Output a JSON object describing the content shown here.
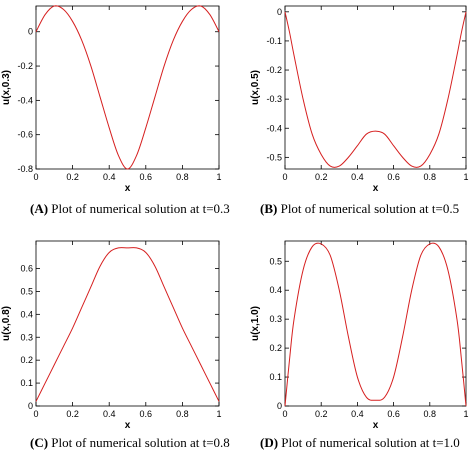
{
  "chart_data": [
    {
      "type": "line",
      "caption_letter": "(A)",
      "caption_text": " Plot of numerical solution at t=0.3",
      "xlabel": "x",
      "ylabel": "u(x,0.3)",
      "xlim": [
        0,
        1
      ],
      "ylim": [
        -0.8,
        0.15
      ],
      "xticks": [
        "0",
        "0.2",
        "0.4",
        "0.6",
        "0.8",
        "1"
      ],
      "xtick_values": [
        0,
        0.2,
        0.4,
        0.6,
        0.8,
        1
      ],
      "yticks": [
        "0",
        "-0.2",
        "-0.4",
        "-0.6",
        "-0.8"
      ],
      "ytick_values": [
        0,
        -0.2,
        -0.4,
        -0.6,
        -0.8
      ],
      "color": "#d62020",
      "x": [
        0,
        0.05,
        0.1,
        0.15,
        0.2,
        0.25,
        0.3,
        0.35,
        0.4,
        0.45,
        0.5,
        0.55,
        0.6,
        0.65,
        0.7,
        0.75,
        0.8,
        0.85,
        0.9,
        0.95,
        1
      ],
      "y": [
        0,
        0.1,
        0.15,
        0.13,
        0.06,
        -0.05,
        -0.2,
        -0.38,
        -0.56,
        -0.72,
        -0.8,
        -0.72,
        -0.56,
        -0.38,
        -0.2,
        -0.05,
        0.06,
        0.13,
        0.15,
        0.1,
        0
      ]
    },
    {
      "type": "line",
      "caption_letter": "(B)",
      "caption_text": " Plot of numerical solution at t=0.5",
      "xlabel": "x",
      "ylabel": "u(x,0.5)",
      "xlim": [
        0,
        1
      ],
      "ylim": [
        -0.54,
        0.02
      ],
      "xticks": [
        "0",
        "0.2",
        "0.4",
        "0.6",
        "0.8",
        "1"
      ],
      "xtick_values": [
        0,
        0.2,
        0.4,
        0.6,
        0.8,
        1
      ],
      "yticks": [
        "0",
        "-0.1",
        "-0.2",
        "-0.3",
        "-0.4",
        "-0.5"
      ],
      "ytick_values": [
        0,
        -0.1,
        -0.2,
        -0.3,
        -0.4,
        -0.5
      ],
      "color": "#d62020",
      "x": [
        0,
        0.025,
        0.05,
        0.1,
        0.15,
        0.2,
        0.25,
        0.3,
        0.35,
        0.4,
        0.45,
        0.5,
        0.55,
        0.6,
        0.65,
        0.7,
        0.75,
        0.8,
        0.85,
        0.9,
        0.95,
        0.975,
        1
      ],
      "y": [
        0,
        -0.07,
        -0.15,
        -0.3,
        -0.42,
        -0.49,
        -0.53,
        -0.53,
        -0.5,
        -0.46,
        -0.42,
        -0.41,
        -0.42,
        -0.46,
        -0.5,
        -0.53,
        -0.53,
        -0.49,
        -0.42,
        -0.3,
        -0.15,
        -0.07,
        0
      ]
    },
    {
      "type": "line",
      "caption_letter": "(C)",
      "caption_text": " Plot of numerical solution at t=0.8",
      "xlabel": "x",
      "ylabel": "u(x,0.8)",
      "xlim": [
        0,
        1
      ],
      "ylim": [
        0,
        0.72
      ],
      "xticks": [
        "0",
        "0.2",
        "0.4",
        "0.6",
        "0.8",
        "1"
      ],
      "xtick_values": [
        0,
        0.2,
        0.4,
        0.6,
        0.8,
        1
      ],
      "yticks": [
        "0",
        "0.1",
        "0.2",
        "0.3",
        "0.4",
        "0.5",
        "0.6"
      ],
      "ytick_values": [
        0,
        0.1,
        0.2,
        0.3,
        0.4,
        0.5,
        0.6
      ],
      "color": "#d62020",
      "x": [
        0,
        0.05,
        0.1,
        0.15,
        0.2,
        0.25,
        0.3,
        0.35,
        0.4,
        0.45,
        0.5,
        0.55,
        0.6,
        0.65,
        0.7,
        0.75,
        0.8,
        0.85,
        0.9,
        0.95,
        1
      ],
      "y": [
        0.02,
        0.1,
        0.18,
        0.26,
        0.34,
        0.43,
        0.52,
        0.61,
        0.67,
        0.69,
        0.69,
        0.69,
        0.67,
        0.61,
        0.52,
        0.43,
        0.34,
        0.26,
        0.18,
        0.1,
        0.02
      ]
    },
    {
      "type": "line",
      "caption_letter": "(D)",
      "caption_text": " Plot of numerical solution at t=1.0",
      "xlabel": "x",
      "ylabel": "u(x,1.0)",
      "xlim": [
        0,
        1
      ],
      "ylim": [
        0,
        0.57
      ],
      "xticks": [
        "0",
        "0.2",
        "0.4",
        "0.6",
        "0.8",
        "1"
      ],
      "xtick_values": [
        0,
        0.2,
        0.4,
        0.6,
        0.8,
        1
      ],
      "yticks": [
        "0",
        "0.1",
        "0.2",
        "0.3",
        "0.4",
        "0.5"
      ],
      "ytick_values": [
        0,
        0.1,
        0.2,
        0.3,
        0.4,
        0.5
      ],
      "color": "#d62020",
      "x": [
        0,
        0.025,
        0.05,
        0.1,
        0.15,
        0.2,
        0.25,
        0.3,
        0.35,
        0.4,
        0.45,
        0.5,
        0.55,
        0.6,
        0.65,
        0.7,
        0.75,
        0.8,
        0.85,
        0.9,
        0.95,
        0.975,
        1
      ],
      "y": [
        0,
        0.16,
        0.3,
        0.47,
        0.55,
        0.56,
        0.52,
        0.4,
        0.24,
        0.1,
        0.03,
        0.02,
        0.03,
        0.1,
        0.24,
        0.4,
        0.52,
        0.56,
        0.55,
        0.47,
        0.3,
        0.16,
        0
      ]
    }
  ]
}
